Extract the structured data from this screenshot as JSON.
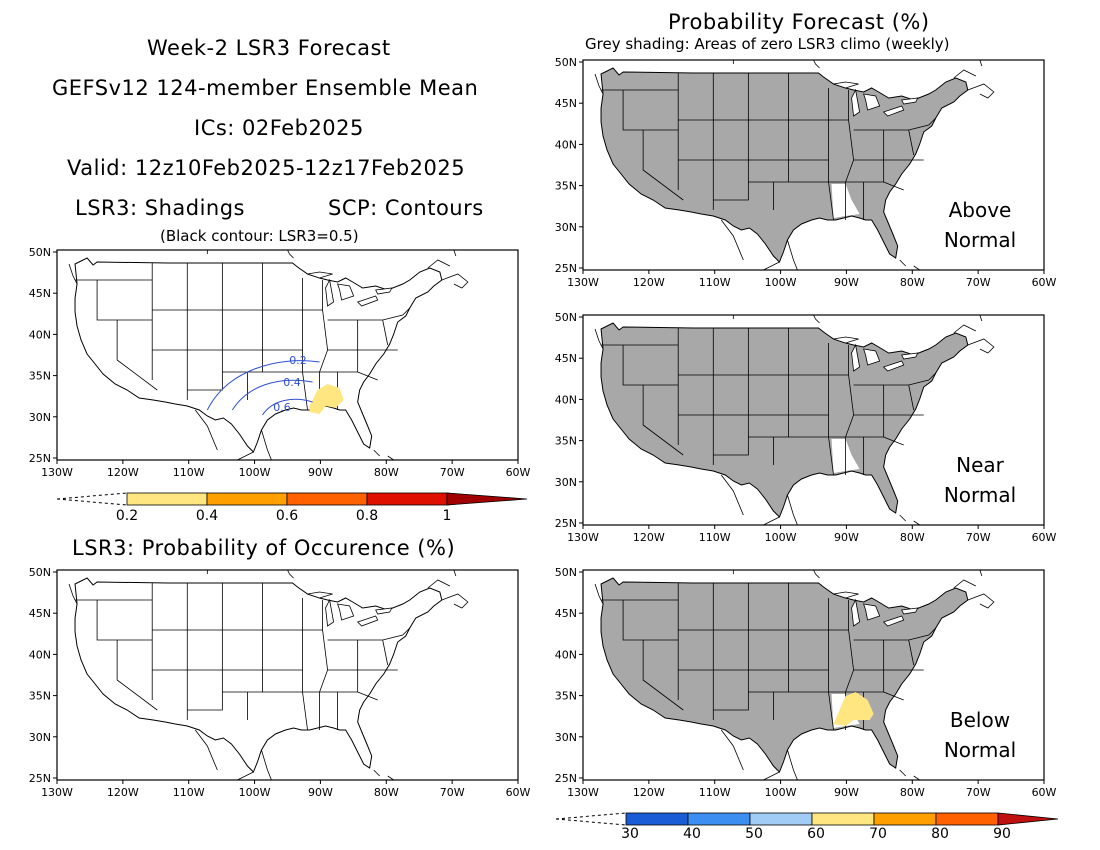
{
  "header": {
    "line1": "Week-2 LSR3 Forecast",
    "line2": "GEFSv12 124-member Ensemble Mean",
    "line3": "ICs: 02Feb2025",
    "line4": "Valid: 12z10Feb2025-12z17Feb2025",
    "line5_left": "LSR3: Shadings",
    "line5_right": "SCP: Contours",
    "note": "(Black contour: LSR3=0.5)"
  },
  "right_header": {
    "title": "Probability Forecast (%)",
    "subtitle": "Grey shading: Areas of zero LSR3 climo (weekly)"
  },
  "prob_title": "LSR3: Probability of Occurence (%)",
  "axes": {
    "lon_labels": [
      "130W",
      "120W",
      "110W",
      "100W",
      "90W",
      "80W",
      "70W",
      "60W"
    ],
    "lat_labels": [
      "50N",
      "45N",
      "40N",
      "35N",
      "30N",
      "25N"
    ]
  },
  "panel_labels": {
    "above": [
      "Above",
      "Normal"
    ],
    "near": [
      "Near",
      "Normal"
    ],
    "below": [
      "Below",
      "Normal"
    ]
  },
  "contours": {
    "labels": [
      "0.2",
      "0.4",
      "0.6"
    ],
    "color": "#3050d0"
  },
  "lsr_colorbar": {
    "labels": [
      "0.2",
      "0.4",
      "0.6",
      "0.8",
      "1"
    ],
    "colors": [
      "#ffe680",
      "#ffa000",
      "#ff6000",
      "#e01000",
      "#a00000"
    ]
  },
  "prob_colorbar": {
    "labels": [
      "30",
      "40",
      "50",
      "60",
      "70",
      "80",
      "90"
    ],
    "colors": [
      "#1a5cd6",
      "#3c8ff0",
      "#a0ccf5",
      "#ffe680",
      "#ffa000",
      "#ff6000",
      "#e01000"
    ]
  },
  "colors": {
    "grey": "#a8a8a8",
    "yellow": "#ffe680"
  }
}
